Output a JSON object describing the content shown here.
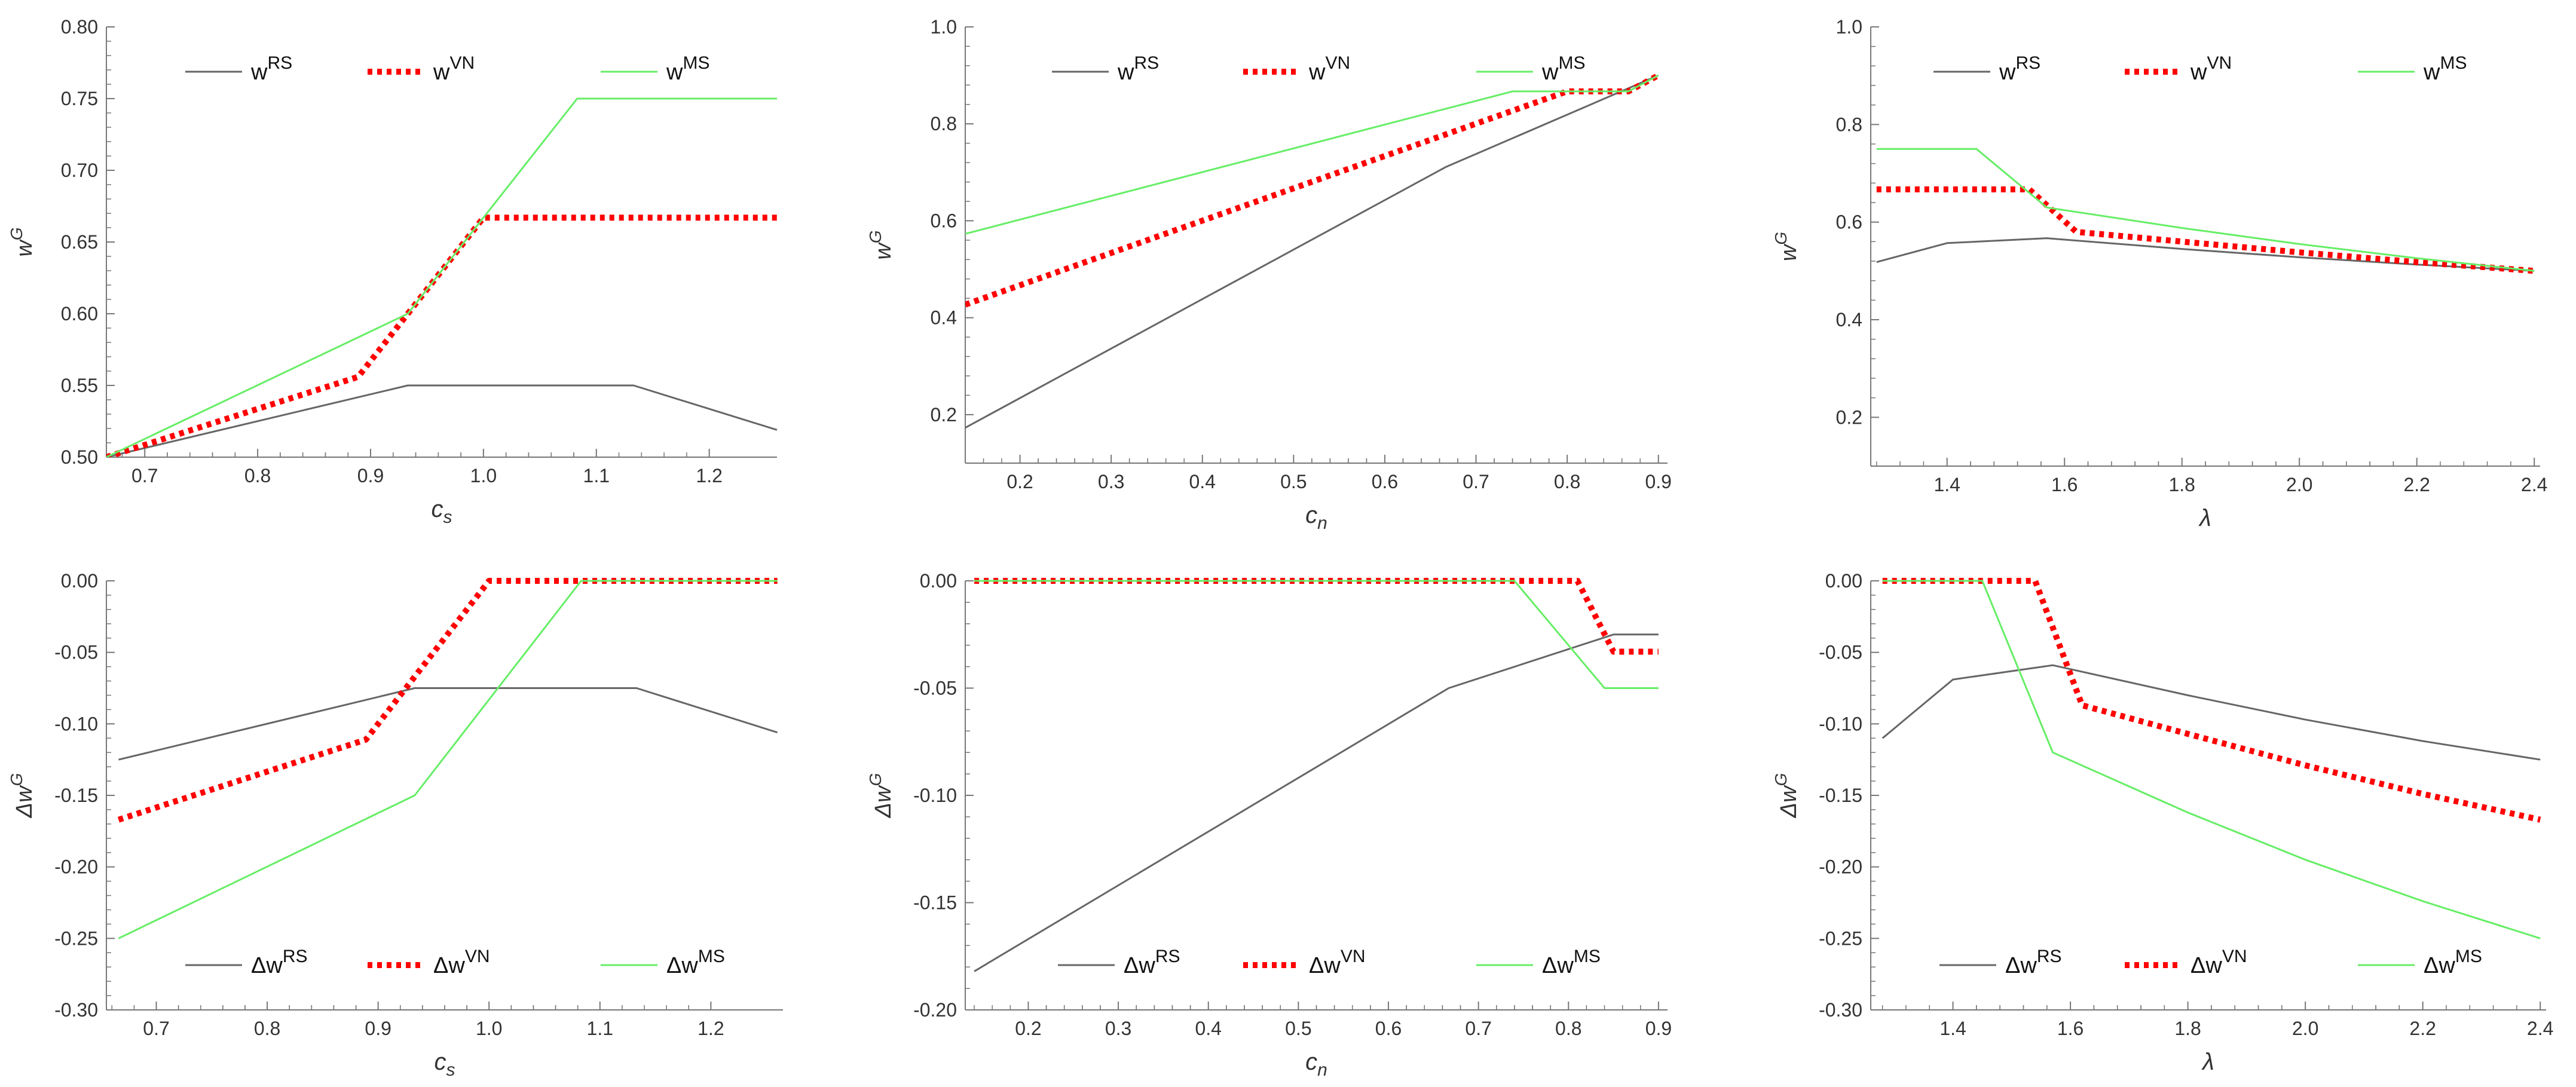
{
  "colors": {
    "RS": "#666666",
    "VN": "#ff0000",
    "MS": "#66ee66",
    "axis": "#777777",
    "text": "#333333"
  },
  "chart_data": [
    {
      "type": "line",
      "xlabel": "c",
      "xlabel_sub": "s",
      "ylabel": "w",
      "ylabel_sup": "G",
      "xlim": [
        0.666,
        1.26
      ],
      "ylim": [
        0.5,
        0.8
      ],
      "xticks": [
        0.7,
        0.8,
        0.9,
        1.0,
        1.1,
        1.2
      ],
      "xtick_labels": [
        "0.7",
        "0.8",
        "0.9",
        "1.0",
        "1.1",
        "1.2"
      ],
      "yticks": [
        0.5,
        0.55,
        0.6,
        0.65,
        0.7,
        0.75,
        0.8
      ],
      "ytick_labels": [
        "0.50",
        "0.55",
        "0.60",
        "0.65",
        "0.70",
        "0.75",
        "0.80"
      ],
      "legend_position": "top",
      "series": [
        {
          "key": "RS",
          "legend_base": "w",
          "legend_sup": "RS",
          "points": [
            [
              0.666,
              0.5
            ],
            [
              0.933,
              0.55
            ],
            [
              1.133,
              0.55
            ],
            [
              1.26,
              0.519
            ]
          ]
        },
        {
          "key": "VN",
          "legend_base": "w",
          "legend_sup": "VN",
          "points": [
            [
              0.666,
              0.5
            ],
            [
              0.889,
              0.556
            ],
            [
              1.0,
              0.667
            ],
            [
              1.26,
              0.667
            ]
          ]
        },
        {
          "key": "MS",
          "legend_base": "w",
          "legend_sup": "MS",
          "points": [
            [
              0.666,
              0.5
            ],
            [
              0.933,
              0.6
            ],
            [
              1.083,
              0.75
            ],
            [
              1.26,
              0.75
            ]
          ]
        }
      ]
    },
    {
      "type": "line",
      "xlabel": "c",
      "xlabel_sub": "n",
      "ylabel": "w",
      "ylabel_sup": "G",
      "xlim": [
        0.14,
        0.91
      ],
      "ylim": [
        0.1,
        1.0
      ],
      "xticks": [
        0.2,
        0.3,
        0.4,
        0.5,
        0.6,
        0.7,
        0.8,
        0.9
      ],
      "xtick_labels": [
        "0.2",
        "0.3",
        "0.4",
        "0.5",
        "0.6",
        "0.7",
        "0.8",
        "0.9"
      ],
      "yticks": [
        0.2,
        0.4,
        0.6,
        0.8,
        1.0
      ],
      "ytick_labels": [
        "0.2",
        "0.4",
        "0.6",
        "0.8",
        "1.0"
      ],
      "legend_position": "top",
      "series": [
        {
          "key": "RS",
          "legend_base": "w",
          "legend_sup": "RS",
          "points": [
            [
              0.14,
              0.173
            ],
            [
              0.667,
              0.711
            ],
            [
              0.9,
              0.9
            ]
          ]
        },
        {
          "key": "VN",
          "legend_base": "w",
          "legend_sup": "VN",
          "points": [
            [
              0.14,
              0.427
            ],
            [
              0.8,
              0.867
            ],
            [
              0.867,
              0.867
            ],
            [
              0.9,
              0.9
            ]
          ]
        },
        {
          "key": "MS",
          "legend_base": "w",
          "legend_sup": "MS",
          "points": [
            [
              0.14,
              0.573
            ],
            [
              0.74,
              0.867
            ],
            [
              0.867,
              0.867
            ],
            [
              0.9,
              0.9
            ]
          ]
        }
      ]
    },
    {
      "type": "line",
      "xlabel": "λ",
      "xlabel_sub": "",
      "ylabel": "w",
      "ylabel_sup": "G",
      "xlim": [
        1.27,
        2.41
      ],
      "ylim": [
        0.1,
        1.0
      ],
      "xticks": [
        1.4,
        1.6,
        1.8,
        2.0,
        2.2,
        2.4
      ],
      "xtick_labels": [
        "1.4",
        "1.6",
        "1.8",
        "2.0",
        "2.2",
        "2.4"
      ],
      "yticks": [
        0.2,
        0.4,
        0.6,
        0.8,
        1.0
      ],
      "ytick_labels": [
        "0.2",
        "0.4",
        "0.6",
        "0.8",
        "1.0"
      ],
      "legend_position": "top",
      "series": [
        {
          "key": "RS",
          "legend_base": "w",
          "legend_sup": "RS",
          "points": [
            [
              1.28,
              0.518
            ],
            [
              1.4,
              0.557
            ],
            [
              1.57,
              0.567
            ],
            [
              1.8,
              0.545
            ],
            [
              2.0,
              0.528
            ],
            [
              2.2,
              0.513
            ],
            [
              2.4,
              0.5
            ]
          ]
        },
        {
          "key": "VN",
          "legend_base": "w",
          "legend_sup": "VN",
          "points": [
            [
              1.28,
              0.667
            ],
            [
              1.54,
              0.667
            ],
            [
              1.62,
              0.58
            ],
            [
              1.8,
              0.56
            ],
            [
              2.0,
              0.538
            ],
            [
              2.2,
              0.518
            ],
            [
              2.4,
              0.5
            ]
          ]
        },
        {
          "key": "MS",
          "legend_base": "w",
          "legend_sup": "MS",
          "points": [
            [
              1.28,
              0.75
            ],
            [
              1.45,
              0.75
            ],
            [
              1.57,
              0.63
            ],
            [
              1.8,
              0.588
            ],
            [
              2.0,
              0.555
            ],
            [
              2.2,
              0.526
            ],
            [
              2.4,
              0.5
            ]
          ]
        }
      ]
    },
    {
      "type": "line",
      "xlabel": "c",
      "xlabel_sub": "s",
      "ylabel": "Δw",
      "ylabel_sup": "G",
      "xlim": [
        0.655,
        1.265
      ],
      "ylim": [
        -0.3,
        0.0
      ],
      "xticks": [
        0.7,
        0.8,
        0.9,
        1.0,
        1.1,
        1.2
      ],
      "xtick_labels": [
        "0.7",
        "0.8",
        "0.9",
        "1.0",
        "1.1",
        "1.2"
      ],
      "yticks": [
        -0.3,
        -0.25,
        -0.2,
        -0.15,
        -0.1,
        -0.05,
        0.0
      ],
      "ytick_labels": [
        "-0.30",
        "-0.25",
        "-0.20",
        "-0.15",
        "-0.10",
        "-0.05",
        "0.00"
      ],
      "legend_position": "bottom",
      "series": [
        {
          "key": "RS",
          "legend_base": "Δw",
          "legend_sup": "RS",
          "points": [
            [
              0.666,
              -0.125
            ],
            [
              0.933,
              -0.075
            ],
            [
              1.133,
              -0.075
            ],
            [
              1.26,
              -0.106
            ]
          ]
        },
        {
          "key": "VN",
          "legend_base": "Δw",
          "legend_sup": "VN",
          "points": [
            [
              0.666,
              -0.167
            ],
            [
              0.889,
              -0.111
            ],
            [
              1.0,
              0.0
            ],
            [
              1.26,
              0.0
            ]
          ]
        },
        {
          "key": "MS",
          "legend_base": "Δw",
          "legend_sup": "MS",
          "points": [
            [
              0.666,
              -0.25
            ],
            [
              0.933,
              -0.15
            ],
            [
              1.083,
              0.0
            ],
            [
              1.26,
              0.0
            ]
          ]
        }
      ]
    },
    {
      "type": "line",
      "xlabel": "c",
      "xlabel_sub": "n",
      "ylabel": "Δw",
      "ylabel_sup": "G",
      "xlim": [
        0.13,
        0.91
      ],
      "ylim": [
        -0.2,
        0.0
      ],
      "xticks": [
        0.2,
        0.3,
        0.4,
        0.5,
        0.6,
        0.7,
        0.8,
        0.9
      ],
      "xtick_labels": [
        "0.2",
        "0.3",
        "0.4",
        "0.5",
        "0.6",
        "0.7",
        "0.8",
        "0.9"
      ],
      "yticks": [
        -0.2,
        -0.15,
        -0.1,
        -0.05,
        0.0
      ],
      "ytick_labels": [
        "-0.20",
        "-0.15",
        "-0.10",
        "-0.05",
        "0.00"
      ],
      "legend_position": "bottom",
      "series": [
        {
          "key": "RS",
          "legend_base": "Δw",
          "legend_sup": "RS",
          "points": [
            [
              0.14,
              -0.182
            ],
            [
              0.667,
              -0.05
            ],
            [
              0.85,
              -0.025
            ],
            [
              0.9,
              -0.025
            ]
          ]
        },
        {
          "key": "VN",
          "legend_base": "Δw",
          "legend_sup": "VN",
          "points": [
            [
              0.14,
              0.0
            ],
            [
              0.81,
              0.0
            ],
            [
              0.85,
              -0.033
            ],
            [
              0.9,
              -0.033
            ]
          ]
        },
        {
          "key": "MS",
          "legend_base": "Δw",
          "legend_sup": "MS",
          "points": [
            [
              0.14,
              0.0
            ],
            [
              0.74,
              0.0
            ],
            [
              0.84,
              -0.05
            ],
            [
              0.9,
              -0.05
            ]
          ]
        }
      ]
    },
    {
      "type": "line",
      "xlabel": "λ",
      "xlabel_sub": "",
      "ylabel": "Δw",
      "ylabel_sup": "G",
      "xlim": [
        1.26,
        2.41
      ],
      "ylim": [
        -0.3,
        0.0
      ],
      "xticks": [
        1.4,
        1.6,
        1.8,
        2.0,
        2.2,
        2.4
      ],
      "xtick_labels": [
        "1.4",
        "1.6",
        "1.8",
        "2.0",
        "2.2",
        "2.4"
      ],
      "yticks": [
        -0.3,
        -0.25,
        -0.2,
        -0.15,
        -0.1,
        -0.05,
        0.0
      ],
      "ytick_labels": [
        "-0.30",
        "-0.25",
        "-0.20",
        "-0.15",
        "-0.10",
        "-0.05",
        "0.00"
      ],
      "legend_position": "bottom",
      "series": [
        {
          "key": "RS",
          "legend_base": "Δw",
          "legend_sup": "RS",
          "points": [
            [
              1.28,
              -0.11
            ],
            [
              1.4,
              -0.069
            ],
            [
              1.57,
              -0.059
            ],
            [
              1.8,
              -0.08
            ],
            [
              2.0,
              -0.097
            ],
            [
              2.2,
              -0.112
            ],
            [
              2.4,
              -0.125
            ]
          ]
        },
        {
          "key": "VN",
          "legend_base": "Δw",
          "legend_sup": "VN",
          "points": [
            [
              1.28,
              0.0
            ],
            [
              1.54,
              0.0
            ],
            [
              1.62,
              -0.087
            ],
            [
              1.8,
              -0.107
            ],
            [
              2.0,
              -0.129
            ],
            [
              2.2,
              -0.149
            ],
            [
              2.4,
              -0.167
            ]
          ]
        },
        {
          "key": "MS",
          "legend_base": "Δw",
          "legend_sup": "MS",
          "points": [
            [
              1.28,
              0.0
            ],
            [
              1.45,
              0.0
            ],
            [
              1.57,
              -0.12
            ],
            [
              1.8,
              -0.162
            ],
            [
              2.0,
              -0.195
            ],
            [
              2.2,
              -0.224
            ],
            [
              2.4,
              -0.25
            ]
          ]
        }
      ]
    }
  ]
}
